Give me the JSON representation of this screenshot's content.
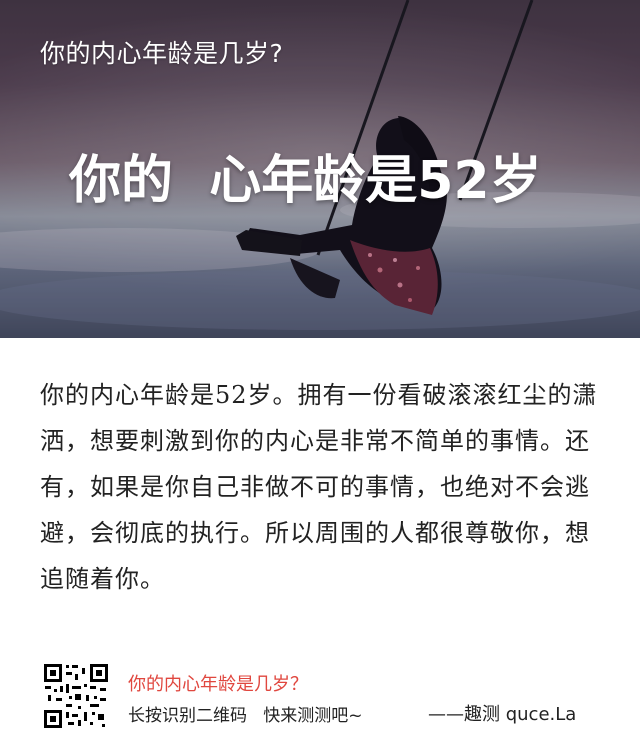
{
  "hero": {
    "question": "你的内心年龄是几岁?",
    "result": "你的  心年龄是52岁"
  },
  "description": "你的内心年龄是52岁。拥有一份看破滚滚红尘的潇洒，想要刺激到你的内心是非常不简单的事情。还有，如果是你自己非做不可的事情，也绝对不会逃避，会彻底的执行。所以周围的人都很尊敬你，想追随着你。",
  "footer": {
    "title": "你的内心年龄是几岁？",
    "subtitle": "长按识别二维码   快来测测吧~",
    "brand": "——趣测 quce.La",
    "qr_icon": "qr-code-icon"
  },
  "colors": {
    "accent": "#e0473f",
    "text": "#222222",
    "hero_text": "#ffffff"
  }
}
